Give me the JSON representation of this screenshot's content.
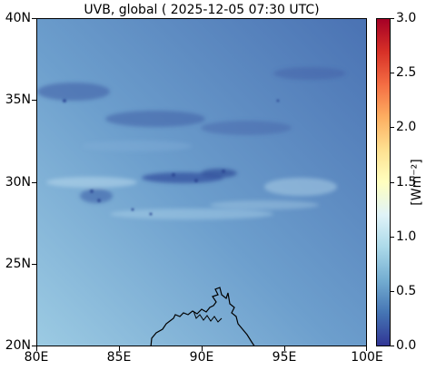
{
  "title": "UVB, global ( 2025-12-05 07:30 UTC)",
  "map": {
    "lon_ticks": [
      "80E",
      "85E",
      "90E",
      "95E",
      "100E"
    ],
    "lat_ticks": [
      "40N",
      "35N",
      "30N",
      "25N",
      "20N"
    ],
    "extent": {
      "lon": [
        80,
        100
      ],
      "lat": [
        20,
        40
      ]
    }
  },
  "colorbar": {
    "label": "[Wm⁻²]",
    "ticks": [
      "3.0",
      "2.5",
      "2.0",
      "1.5",
      "1.0",
      "0.5",
      "0.0"
    ],
    "range": [
      0.0,
      3.0
    ],
    "colormap": "RdYlBu_r",
    "colors": [
      "#313695",
      "#4575b4",
      "#74add1",
      "#abd9e9",
      "#e0f3f8",
      "#ffffbf",
      "#fee090",
      "#fdae61",
      "#f46d43",
      "#d73027",
      "#a50026"
    ]
  }
}
